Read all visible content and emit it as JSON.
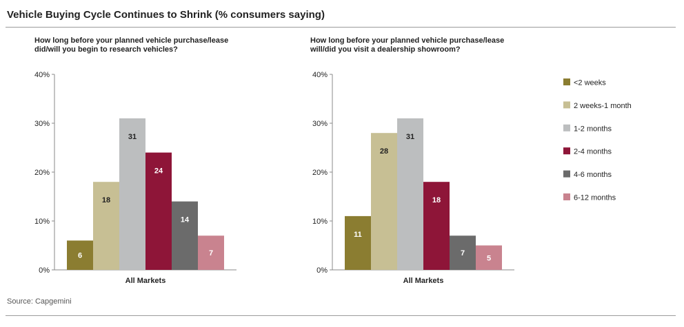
{
  "title": "Vehicle Buying Cycle Continues to Shrink (% consumers saying)",
  "source": "Source: Capgemini",
  "colors": [
    "#8b7d31",
    "#c7bf94",
    "#bcbebf",
    "#8e1538",
    "#6b6b6b",
    "#c9838f"
  ],
  "value_label_colors": [
    "#ffffff",
    "#222222",
    "#222222",
    "#ffffff",
    "#ffffff",
    "#ffffff"
  ],
  "legend": [
    "<2 weeks",
    "2 weeks-1 month",
    "1-2 months",
    "2-4 months",
    "4-6 months",
    "6-12 months"
  ],
  "chart_data": [
    {
      "type": "bar",
      "title_lines": [
        "How long before your planned vehicle purchase/lease",
        "did/will you begin to research vehicles?"
      ],
      "categories": [
        "All Markets"
      ],
      "yticks": [
        "0%",
        "10%",
        "20%",
        "30%",
        "40%"
      ],
      "ylim": [
        0,
        40
      ],
      "grid": false,
      "series": [
        {
          "name": "<2 weeks",
          "values": [
            6
          ]
        },
        {
          "name": "2 weeks-1 month",
          "values": [
            18
          ]
        },
        {
          "name": "1-2 months",
          "values": [
            31
          ]
        },
        {
          "name": "2-4 months",
          "values": [
            24
          ]
        },
        {
          "name": "4-6 months",
          "values": [
            14
          ]
        },
        {
          "name": "6-12 months",
          "values": [
            7
          ]
        }
      ]
    },
    {
      "type": "bar",
      "title_lines": [
        "How long before your planned vehicle purchase/lease",
        "will/did you visit a dealership showroom?"
      ],
      "categories": [
        "All Markets"
      ],
      "yticks": [
        "0%",
        "10%",
        "20%",
        "30%",
        "40%"
      ],
      "ylim": [
        0,
        40
      ],
      "grid": false,
      "series": [
        {
          "name": "<2 weeks",
          "values": [
            11
          ]
        },
        {
          "name": "2 weeks-1 month",
          "values": [
            28
          ]
        },
        {
          "name": "1-2 months",
          "values": [
            31
          ]
        },
        {
          "name": "2-4 months",
          "values": [
            18
          ]
        },
        {
          "name": "4-6 months",
          "values": [
            7
          ]
        },
        {
          "name": "6-12 months",
          "values": [
            5
          ]
        }
      ]
    }
  ]
}
